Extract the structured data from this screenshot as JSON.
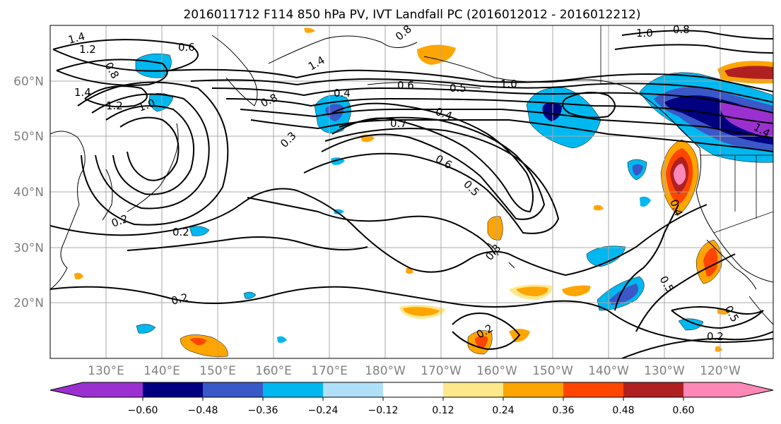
{
  "title": "2016011712 F114 850 hPa PV, IVT Landfall PC (2016012012 - 2016012212)",
  "map": {
    "lat_ticks": [
      "20°N",
      "30°N",
      "40°N",
      "50°N",
      "60°N"
    ],
    "lon_ticks": [
      "130°E",
      "140°E",
      "150°E",
      "160°E",
      "170°E",
      "180°W",
      "170°W",
      "160°W",
      "150°W",
      "140°W",
      "130°W",
      "120°W"
    ],
    "contour_labels": [
      "1.4",
      "1.2",
      "0.8",
      "0.6",
      "1.4",
      "1.2",
      "1.4",
      "0.8",
      "0.4",
      "0.6",
      "0.5",
      "1.0",
      "0.3",
      "0.7",
      "0.4",
      "0.6",
      "0.5",
      "0.2",
      "0.2",
      "0.3",
      "0.2",
      "0.4",
      "0.5",
      "0.5",
      "0.2",
      "0.8",
      "1.0",
      "1.4",
      "0.8",
      "1.0",
      "0.2"
    ]
  },
  "colorbar": {
    "tick_labels": [
      "−0.60",
      "−0.48",
      "−0.36",
      "−0.24",
      "−0.12",
      "0.12",
      "0.24",
      "0.36",
      "0.48",
      "0.60"
    ],
    "colors": [
      "#9b30d0",
      "#000080",
      "#3a58c8",
      "#00b8f0",
      "#b0e0f8",
      "#ffffff",
      "#ffe88a",
      "#ffa500",
      "#ff4500",
      "#b02020",
      "#ff88b8"
    ]
  }
}
